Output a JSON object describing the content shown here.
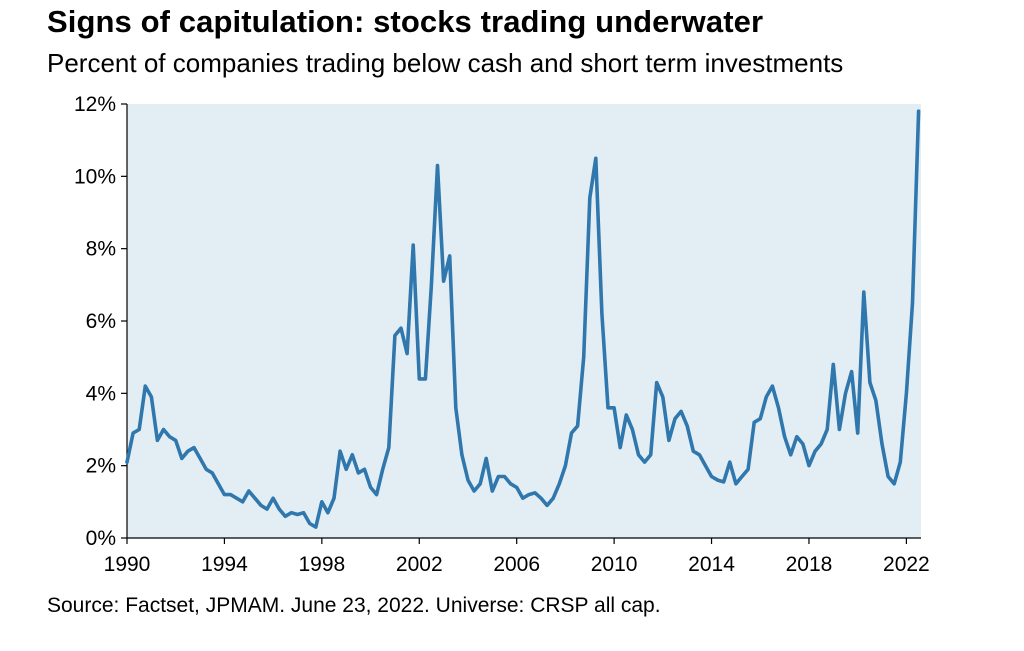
{
  "header": {
    "title": "Signs of capitulation: stocks trading underwater",
    "subtitle": "Percent of companies trading below cash and short term investments"
  },
  "footer": {
    "source": "Source: Factset, JPMAM. June 23, 2022. Universe: CRSP all cap."
  },
  "colors": {
    "line": "#2f77ad",
    "plot_background": "#e3eef4",
    "axis": "#000000"
  },
  "chart_data": {
    "type": "line",
    "title": "Signs of capitulation: stocks trading underwater",
    "subtitle": "Percent of companies trading below cash and short term investments",
    "xlabel": "",
    "ylabel": "",
    "xlim": [
      1990,
      2022.6
    ],
    "ylim": [
      0,
      12
    ],
    "x_ticks": [
      1990,
      1994,
      1998,
      2002,
      2006,
      2010,
      2014,
      2018,
      2022
    ],
    "x_tick_labels": [
      "1990",
      "1994",
      "1998",
      "2002",
      "2006",
      "2010",
      "2014",
      "2018",
      "2022"
    ],
    "y_ticks": [
      0,
      2,
      4,
      6,
      8,
      10,
      12
    ],
    "y_tick_labels": [
      "0%",
      "2%",
      "4%",
      "6%",
      "8%",
      "10%",
      "12%"
    ],
    "grid": false,
    "legend": "none",
    "series": [
      {
        "x": [
          1990.0,
          1990.25,
          1990.5,
          1990.75,
          1991.0,
          1991.25,
          1991.5,
          1991.75,
          1992.0,
          1992.25,
          1992.5,
          1992.75,
          1993.0,
          1993.25,
          1993.5,
          1993.75,
          1994.0,
          1994.25,
          1994.5,
          1994.75,
          1995.0,
          1995.25,
          1995.5,
          1995.75,
          1996.0,
          1996.25,
          1996.5,
          1996.75,
          1997.0,
          1997.25,
          1997.5,
          1997.75,
          1998.0,
          1998.25,
          1998.5,
          1998.75,
          1999.0,
          1999.25,
          1999.5,
          1999.75,
          2000.0,
          2000.25,
          2000.5,
          2000.75,
          2001.0,
          2001.25,
          2001.5,
          2001.75,
          2002.0,
          2002.25,
          2002.5,
          2002.75,
          2003.0,
          2003.25,
          2003.5,
          2003.75,
          2004.0,
          2004.25,
          2004.5,
          2004.75,
          2005.0,
          2005.25,
          2005.5,
          2005.75,
          2006.0,
          2006.25,
          2006.5,
          2006.75,
          2007.0,
          2007.25,
          2007.5,
          2007.75,
          2008.0,
          2008.25,
          2008.5,
          2008.75,
          2009.0,
          2009.25,
          2009.5,
          2009.75,
          2010.0,
          2010.25,
          2010.5,
          2010.75,
          2011.0,
          2011.25,
          2011.5,
          2011.75,
          2012.0,
          2012.25,
          2012.5,
          2012.75,
          2013.0,
          2013.25,
          2013.5,
          2013.75,
          2014.0,
          2014.25,
          2014.5,
          2014.75,
          2015.0,
          2015.25,
          2015.5,
          2015.75,
          2016.0,
          2016.25,
          2016.5,
          2016.75,
          2017.0,
          2017.25,
          2017.5,
          2017.75,
          2018.0,
          2018.25,
          2018.5,
          2018.75,
          2019.0,
          2019.25,
          2019.5,
          2019.75,
          2020.0,
          2020.25,
          2020.5,
          2020.75,
          2021.0,
          2021.25,
          2021.5,
          2021.75,
          2022.0,
          2022.25,
          2022.5
        ],
        "y": [
          2.1,
          2.9,
          3.0,
          4.2,
          3.9,
          2.7,
          3.0,
          2.8,
          2.7,
          2.2,
          2.4,
          2.5,
          2.2,
          1.9,
          1.8,
          1.5,
          1.2,
          1.2,
          1.1,
          1.0,
          1.3,
          1.1,
          0.9,
          0.8,
          1.1,
          0.8,
          0.6,
          0.7,
          0.65,
          0.7,
          0.4,
          0.3,
          1.0,
          0.7,
          1.1,
          2.4,
          1.9,
          2.3,
          1.8,
          1.9,
          1.4,
          1.2,
          1.9,
          2.5,
          5.6,
          5.8,
          5.1,
          8.1,
          4.4,
          4.4,
          7.0,
          10.3,
          7.1,
          7.8,
          3.6,
          2.3,
          1.6,
          1.3,
          1.5,
          2.2,
          1.3,
          1.7,
          1.7,
          1.5,
          1.4,
          1.1,
          1.2,
          1.25,
          1.1,
          0.9,
          1.1,
          1.5,
          2.0,
          2.9,
          3.1,
          5.0,
          9.4,
          10.5,
          6.2,
          3.6,
          3.6,
          2.5,
          3.4,
          3.0,
          2.3,
          2.1,
          2.3,
          4.3,
          3.9,
          2.7,
          3.3,
          3.5,
          3.1,
          2.4,
          2.3,
          2.0,
          1.7,
          1.6,
          1.55,
          2.1,
          1.5,
          1.7,
          1.9,
          3.2,
          3.3,
          3.9,
          4.2,
          3.6,
          2.8,
          2.3,
          2.8,
          2.6,
          2.0,
          2.4,
          2.6,
          3.0,
          4.8,
          3.0,
          4.0,
          4.6,
          2.9,
          6.8,
          4.3,
          3.8,
          2.6,
          1.7,
          1.5,
          2.1,
          4.0,
          6.5,
          11.8
        ]
      }
    ]
  }
}
